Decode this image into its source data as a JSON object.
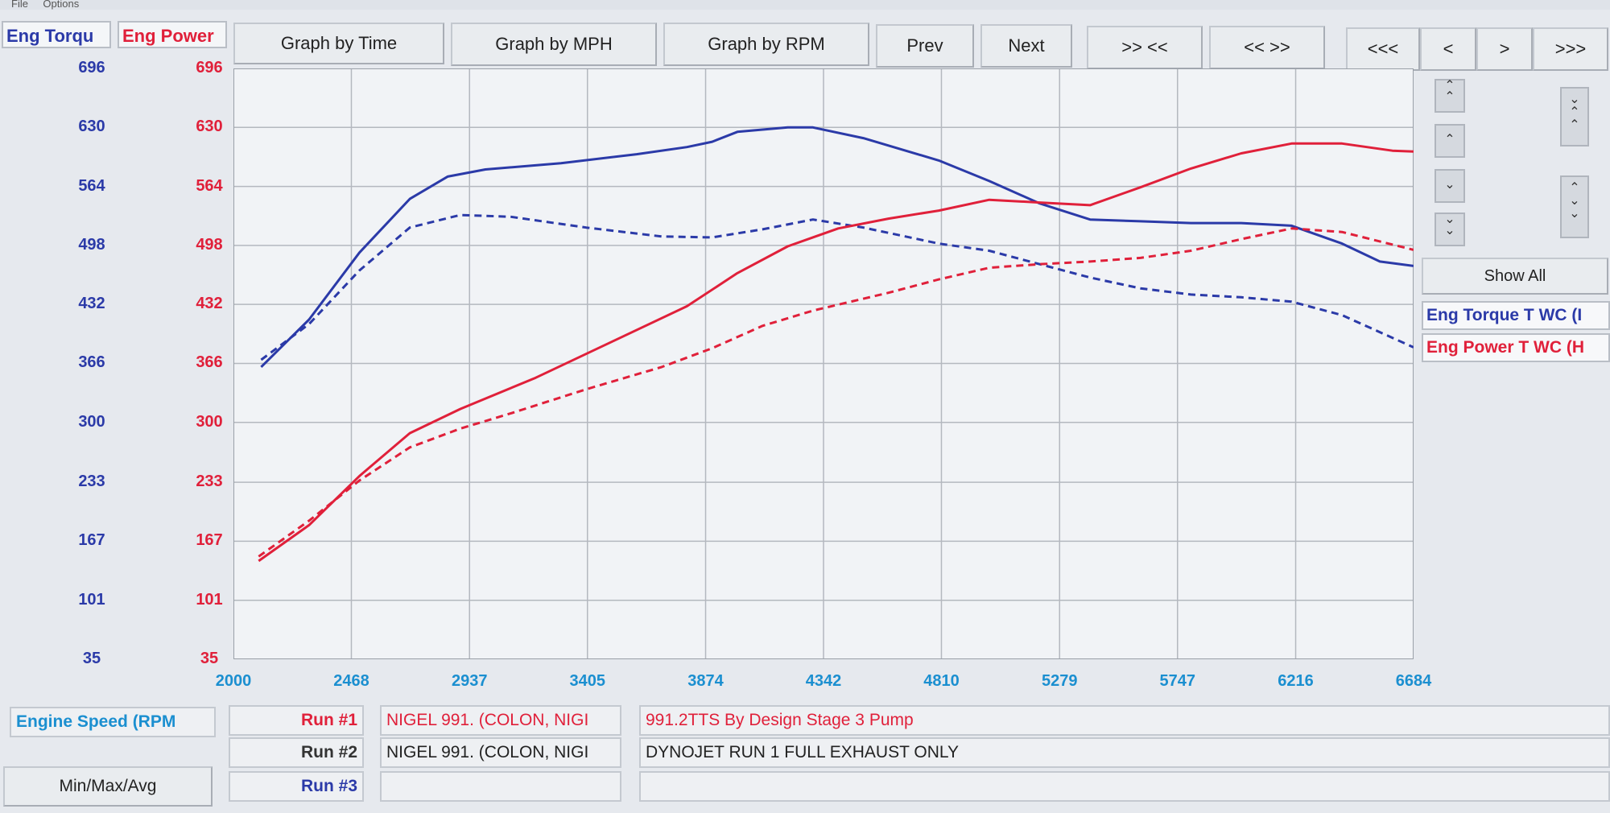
{
  "menu": [
    "File",
    "Options"
  ],
  "axis_headers": {
    "torque": "Eng Torqu",
    "power": "Eng Power"
  },
  "toolbar": {
    "graph_time": "Graph by Time",
    "graph_mph": "Graph by MPH",
    "graph_rpm": "Graph by RPM",
    "prev": "Prev",
    "next": "Next",
    "zoom_in": ">> <<",
    "zoom_out": "<< >>",
    "scroll_far_left": "<<<",
    "scroll_left": "<",
    "scroll_right": ">",
    "scroll_far_right": ">>>"
  },
  "side": {
    "show_all": "Show All",
    "legend": [
      "Eng Torque T WC (I",
      "Eng Power T WC (H"
    ]
  },
  "bottom": {
    "x_axis_label": "Engine Speed (RPM",
    "minmax": "Min/Max/Avg",
    "runs": [
      {
        "label": "Run #1",
        "name": "NIGEL 991. (COLON, NIGI",
        "note": "991.2TTS By Design Stage 3 Pump"
      },
      {
        "label": "Run #2",
        "name": "NIGEL 991. (COLON, NIGI",
        "note": "DYNOJET RUN 1 FULL EXHAUST ONLY"
      },
      {
        "label": "Run #3",
        "name": "",
        "note": ""
      }
    ]
  },
  "colors": {
    "torque": "#2b3aa8",
    "power": "#e0203a",
    "xaxis": "#1b8fd0",
    "grid": "#b4b8bf",
    "plot_bg": "#f1f3f6"
  },
  "chart_data": {
    "type": "line",
    "xlabel": "Engine Speed (RPM",
    "ylabel": "Eng Torqu / Eng Power",
    "xlim": [
      2000,
      6684
    ],
    "ylim": [
      35,
      696
    ],
    "x_ticks": [
      "2000",
      "2468",
      "2937",
      "3405",
      "3874",
      "4342",
      "4810",
      "5279",
      "5747",
      "6216",
      "6684"
    ],
    "y_ticks": [
      "696",
      "630",
      "564",
      "498",
      "432",
      "366",
      "300",
      "233",
      "167",
      "101",
      "35"
    ],
    "grid": true,
    "series": [
      {
        "name": "Eng Torque T WC (I",
        "run": "Run #1",
        "color": "#2b3aa8",
        "dash": false,
        "x": [
          2110,
          2300,
          2500,
          2700,
          2850,
          3000,
          3300,
          3600,
          3800,
          3900,
          4000,
          4200,
          4300,
          4500,
          4800,
          5000,
          5200,
          5400,
          5600,
          5800,
          6000,
          6200,
          6400,
          6550,
          6684
        ],
        "y": [
          362,
          415,
          490,
          550,
          575,
          583,
          590,
          600,
          608,
          614,
          625,
          630,
          630,
          618,
          593,
          570,
          545,
          527,
          525,
          523,
          523,
          520,
          500,
          480,
          475
        ]
      },
      {
        "name": "Eng Torque T WC (I",
        "run": "Run #2",
        "color": "#2b3aa8",
        "dash": true,
        "x": [
          2110,
          2300,
          2500,
          2700,
          2900,
          3100,
          3400,
          3700,
          3900,
          4100,
          4300,
          4500,
          4800,
          5000,
          5200,
          5400,
          5600,
          5800,
          6000,
          6200,
          6400,
          6684
        ],
        "y": [
          370,
          410,
          470,
          518,
          532,
          530,
          518,
          508,
          507,
          516,
          527,
          518,
          500,
          492,
          477,
          462,
          450,
          443,
          440,
          435,
          420,
          384
        ]
      },
      {
        "name": "Eng Power T WC (H",
        "run": "Run #1",
        "color": "#e0203a",
        "dash": false,
        "x": [
          2100,
          2300,
          2500,
          2700,
          2900,
          3200,
          3500,
          3800,
          4000,
          4200,
          4400,
          4600,
          4800,
          5000,
          5200,
          5400,
          5600,
          5800,
          6000,
          6200,
          6400,
          6600,
          6684
        ],
        "y": [
          145,
          185,
          240,
          288,
          315,
          350,
          390,
          430,
          467,
          497,
          517,
          528,
          537,
          549,
          546,
          543,
          563,
          584,
          601,
          612,
          612,
          604,
          603
        ]
      },
      {
        "name": "Eng Power T WC (H",
        "run": "Run #2",
        "color": "#e0203a",
        "dash": true,
        "x": [
          2100,
          2300,
          2500,
          2700,
          2900,
          3100,
          3400,
          3700,
          3900,
          4100,
          4300,
          4600,
          4800,
          5000,
          5200,
          5400,
          5600,
          5800,
          6000,
          6200,
          6400,
          6684
        ],
        "y": [
          150,
          190,
          235,
          272,
          293,
          310,
          337,
          362,
          383,
          408,
          425,
          445,
          460,
          473,
          477,
          480,
          484,
          492,
          505,
          517,
          513,
          493
        ]
      }
    ]
  }
}
